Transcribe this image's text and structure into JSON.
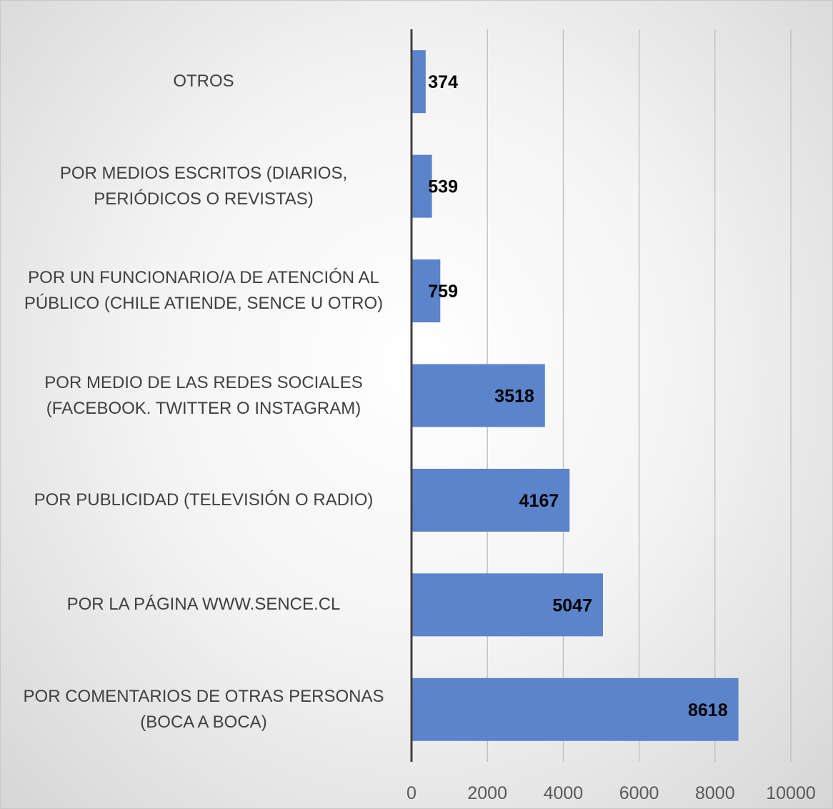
{
  "chart_data": {
    "type": "bar",
    "orientation": "horizontal",
    "categories": [
      "OTROS",
      "POR MEDIOS ESCRITOS (DIARIOS, PERIÓDICOS O REVISTAS)",
      "POR UN FUNCIONARIO/A DE ATENCIÓN AL PÚBLICO (CHILE ATIENDE, SENCE U OTRO)",
      "POR MEDIO DE LAS REDES SOCIALES (FACEBOOK. TWITTER O INSTAGRAM)",
      "POR PUBLICIDAD (TELEVISIÓN O RADIO)",
      "POR LA PÁGINA WWW.SENCE.CL",
      "POR COMENTARIOS DE OTRAS PERSONAS (BOCA A BOCA)"
    ],
    "values": [
      374,
      539,
      759,
      3518,
      4167,
      5047,
      8618
    ],
    "color": "#5b84cb",
    "xlim": [
      0,
      10000
    ],
    "xticks": [
      0,
      2000,
      4000,
      6000,
      8000,
      10000
    ],
    "grid": true
  }
}
